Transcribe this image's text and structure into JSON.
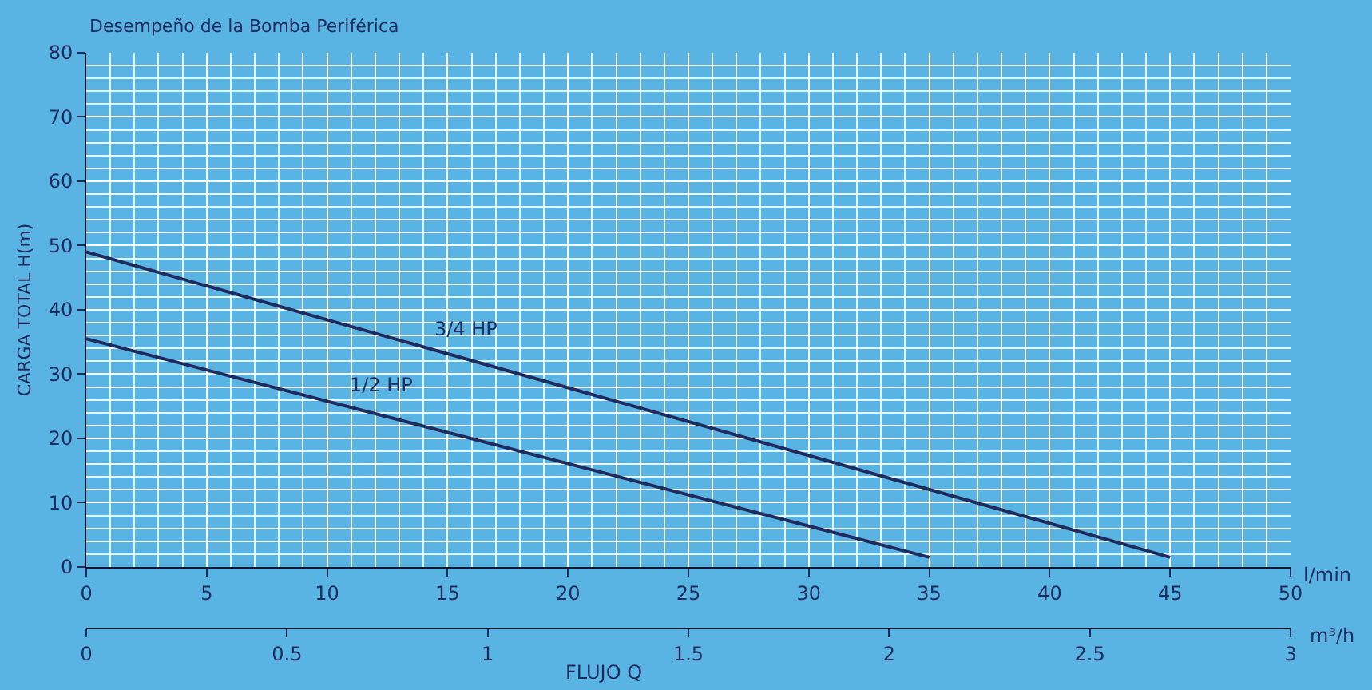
{
  "chart_data": {
    "type": "line",
    "title": "Desempeño de la Bomba Periférica",
    "ylabel": "CARGA TOTAL H(m)",
    "xlabel": "l/min",
    "x2label": "m³/h",
    "series": [
      {
        "name": "1/2 HP",
        "color": "#1f2b5c",
        "x": [
          0,
          35
        ],
        "values": [
          35.5,
          1.5
        ]
      },
      {
        "name": "3/4 HP",
        "color": "#1f2b5c",
        "x": [
          0,
          45
        ],
        "values": [
          49,
          1.5
        ]
      }
    ],
    "annotations": [
      "FLUJO Q"
    ],
    "xlim": [
      0,
      50
    ],
    "xticks": [
      0,
      5,
      10,
      15,
      20,
      25,
      30,
      35,
      40,
      45,
      50
    ],
    "x2lim": [
      0,
      3
    ],
    "x2ticks": [
      0,
      0.5,
      1,
      1.5,
      2,
      2.5,
      3
    ],
    "ylim": [
      0,
      80
    ],
    "yticks": [
      0,
      10,
      20,
      30,
      40,
      50,
      60,
      70,
      80
    ],
    "grid": true,
    "legend": false,
    "marker": "none",
    "line_style": "solid"
  }
}
